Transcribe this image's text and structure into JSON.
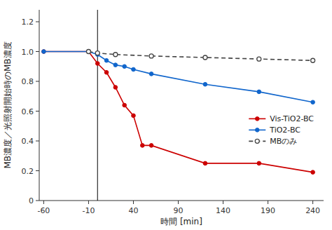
{
  "chart_data": {
    "type": "line",
    "xlabel": "時間 [min]",
    "ylabel": "MB濃度／光照射開始時のMB濃度",
    "series": [
      {
        "name": "Vis-TiO2-BC",
        "color": "#cc0000",
        "line_style": "solid",
        "marker": "circle",
        "x": [
          -60,
          -10,
          0,
          10,
          20,
          30,
          40,
          50,
          60,
          120,
          180,
          240
        ],
        "values": [
          1.0,
          1.0,
          0.92,
          0.86,
          0.76,
          0.64,
          0.57,
          0.37,
          0.37,
          0.25,
          0.25,
          0.19
        ]
      },
      {
        "name": "TiO2-BC",
        "color": "#1166cc",
        "line_style": "solid",
        "marker": "circle",
        "x": [
          -60,
          -10,
          0,
          10,
          20,
          30,
          40,
          60,
          120,
          180,
          240
        ],
        "values": [
          1.0,
          1.0,
          0.98,
          0.94,
          0.91,
          0.9,
          0.88,
          0.85,
          0.78,
          0.73,
          0.66
        ]
      },
      {
        "name": "MBのみ",
        "color": "#444444",
        "line_style": "dashed",
        "marker": "open-circle",
        "x": [
          -10,
          0,
          20,
          60,
          120,
          180,
          240
        ],
        "values": [
          1.0,
          0.99,
          0.98,
          0.97,
          0.96,
          0.95,
          0.94
        ]
      }
    ],
    "vline_x": 0,
    "xlim": [
      -65,
      252
    ],
    "ylim": [
      0,
      1.28
    ],
    "xticks": [
      -60,
      -10,
      40,
      90,
      140,
      190,
      240
    ],
    "yticks": [
      0,
      0.2,
      0.4,
      0.6,
      0.8,
      {
        "value": 1.0,
        "label": "1.0"
      },
      1.2
    ],
    "grid": false,
    "legend": "right"
  }
}
